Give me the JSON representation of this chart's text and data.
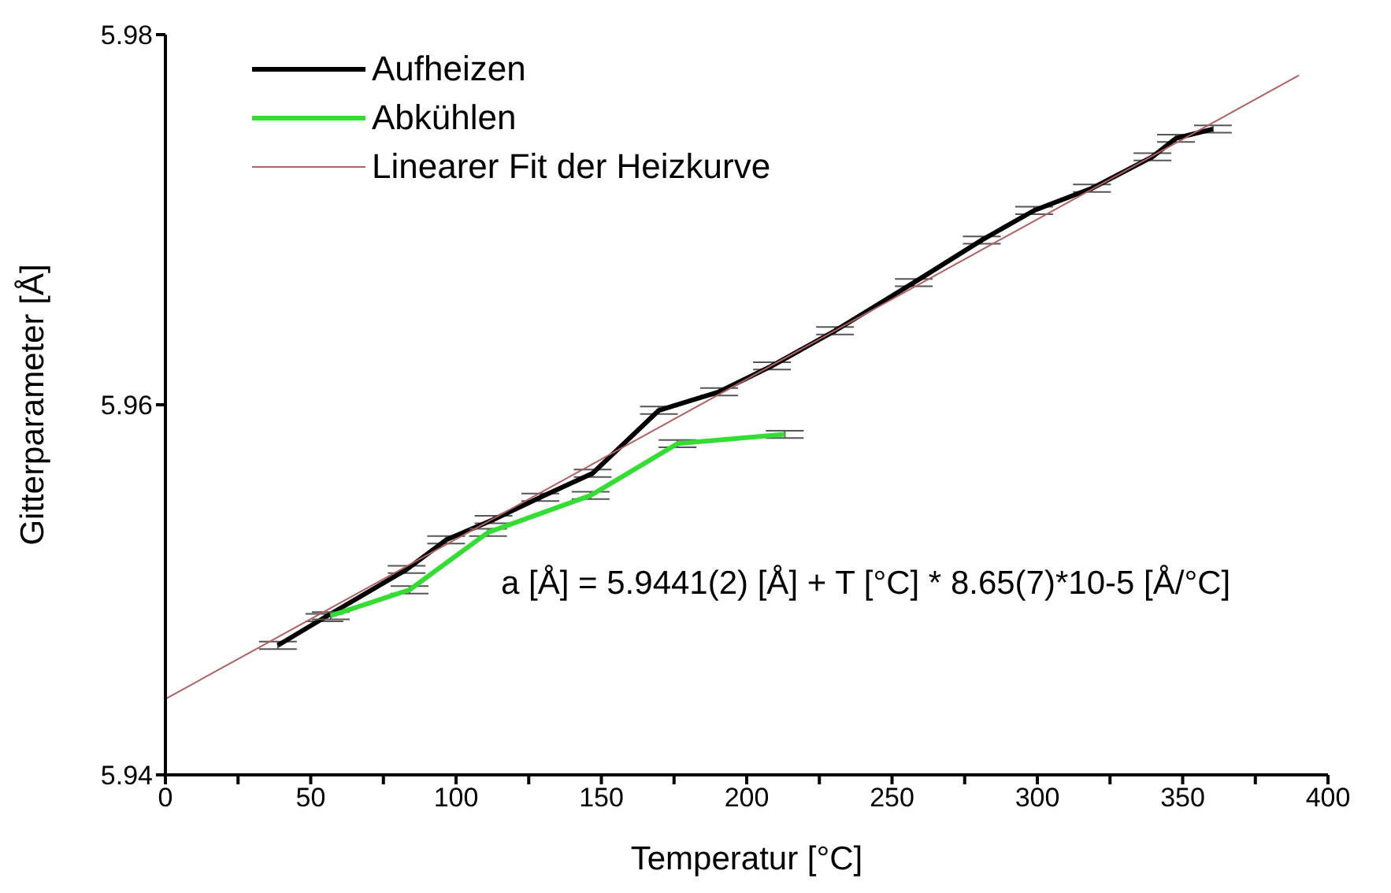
{
  "chart_data": {
    "type": "line",
    "xlabel": "Temperatur [°C]",
    "ylabel": "Gitterparameter [Å]",
    "xlim": [
      0,
      400
    ],
    "ylim": [
      5.94,
      5.98
    ],
    "xticks": [
      0,
      {
        "value": 25,
        "label": null
      },
      50,
      {
        "value": 75,
        "label": null
      },
      100,
      {
        "value": 125,
        "label": null
      },
      150,
      {
        "value": 175,
        "label": null
      },
      200,
      {
        "value": 225,
        "label": null
      },
      250,
      {
        "value": 275,
        "label": null
      },
      300,
      {
        "value": 325,
        "label": null
      },
      350,
      {
        "value": 375,
        "label": null
      },
      400
    ],
    "yticks": [
      5.94,
      5.96,
      5.98
    ],
    "grid": false,
    "legend": "top left",
    "marker": "none",
    "line_style": "solid",
    "annotations": [
      "a [Å] = 5.9441(2) [Å] + T [°C] * 8.65(7)*10-5 [Å/°C]"
    ],
    "series": [
      {
        "name": "Aufheizen",
        "color": "#000000",
        "x": [
          38.7,
          54.7,
          83,
          96.6,
          112.9,
          129,
          147,
          169.8,
          190.5,
          208.7,
          230.4,
          257.5,
          280.9,
          298.9,
          318.8,
          339.6,
          347.7,
          360.4
        ],
        "values": [
          5.947,
          5.9485,
          5.9511,
          5.9527,
          5.9538,
          5.955,
          5.9563,
          5.9597,
          5.9607,
          5.9621,
          5.964,
          5.9666,
          5.9689,
          5.9705,
          5.9717,
          5.9734,
          5.9744,
          5.9749
        ],
        "errors": [
          0.0002,
          0.0002,
          0.0002,
          0.0002,
          0.0002,
          0.0002,
          0.0002,
          0.0002,
          0.0002,
          0.0002,
          0.0002,
          0.0002,
          0.0002,
          0.0002,
          0.0002,
          0.0002,
          0.0002,
          0.0002
        ]
      },
      {
        "name": "Abkühlen",
        "color": "#33dd33",
        "x": [
          56.9,
          84,
          111,
          146.3,
          176.2,
          213.1
        ],
        "values": [
          5.9486,
          5.95,
          5.9531,
          5.9551,
          5.9579,
          5.9584
        ],
        "errors": [
          0.0002,
          0.0002,
          0.0002,
          0.0002,
          0.0002,
          0.0002
        ]
      },
      {
        "name": "Linearer Fit der Heizkurve",
        "type": "line",
        "color": "#b06060",
        "x": [
          0,
          390
        ],
        "values": [
          5.9441,
          5.9778
        ]
      }
    ]
  }
}
